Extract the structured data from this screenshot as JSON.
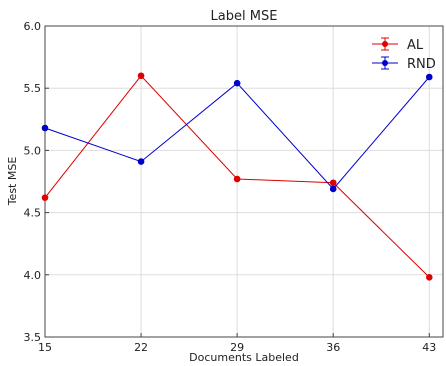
{
  "chart_data": {
    "type": "line",
    "title": "Label MSE",
    "xlabel": "Documents Labeled",
    "ylabel": "Test MSE",
    "x": [
      15,
      22,
      29,
      36,
      43
    ],
    "xticks": [
      "15",
      "22",
      "29",
      "36",
      "43"
    ],
    "xlim": [
      15,
      44
    ],
    "ylim": [
      3.5,
      6.0
    ],
    "yticks": [
      "3.5",
      "4.0",
      "4.5",
      "5.0",
      "5.5",
      "6.0"
    ],
    "grid": true,
    "legend_position": "top-right",
    "series": [
      {
        "name": "AL",
        "color": "#dd0000",
        "values": [
          4.62,
          5.6,
          4.77,
          4.74,
          3.98
        ]
      },
      {
        "name": "RND",
        "color": "#0000cc",
        "values": [
          5.18,
          4.91,
          5.54,
          4.69,
          5.59
        ]
      }
    ]
  }
}
